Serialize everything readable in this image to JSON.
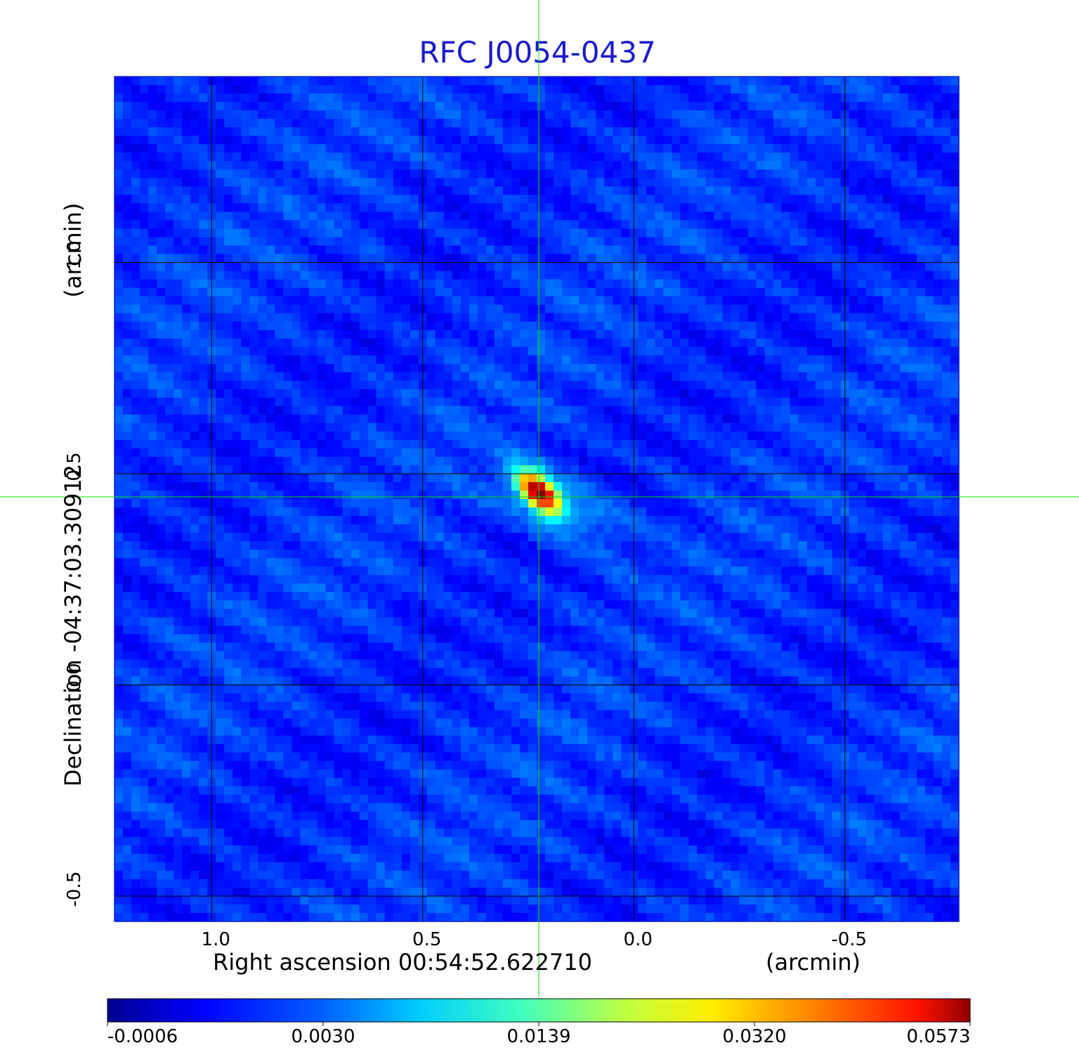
{
  "chart_data": {
    "type": "heatmap",
    "title": "RFC J0054-0437",
    "xlabel": "Right ascension  00:54:52.622710",
    "xunit": "(arcmin)",
    "ylabel": "Declination  -04:37:03.30912",
    "yunit": "(arcmin)",
    "xlim": [
      1.23,
      -0.77
    ],
    "ylim": [
      -0.56,
      1.44
    ],
    "x_ticks": [
      "1.0",
      "0.5",
      "0.0",
      "-0.5"
    ],
    "y_ticks": [
      "1.0",
      "0.5",
      "0.0",
      "-0.5"
    ],
    "grid": true,
    "crosshair": {
      "x": 0.225,
      "y": 0.445,
      "color": "#00e000"
    },
    "peak": {
      "x": 0.225,
      "y": 0.455,
      "value": 0.0573
    },
    "colorbar": {
      "tick_labels": [
        "-0.0006",
        "0.0030",
        "0.0139",
        "0.0320",
        "0.0573"
      ],
      "colormap": "jet",
      "min": -0.0006,
      "max": 0.0573
    }
  }
}
